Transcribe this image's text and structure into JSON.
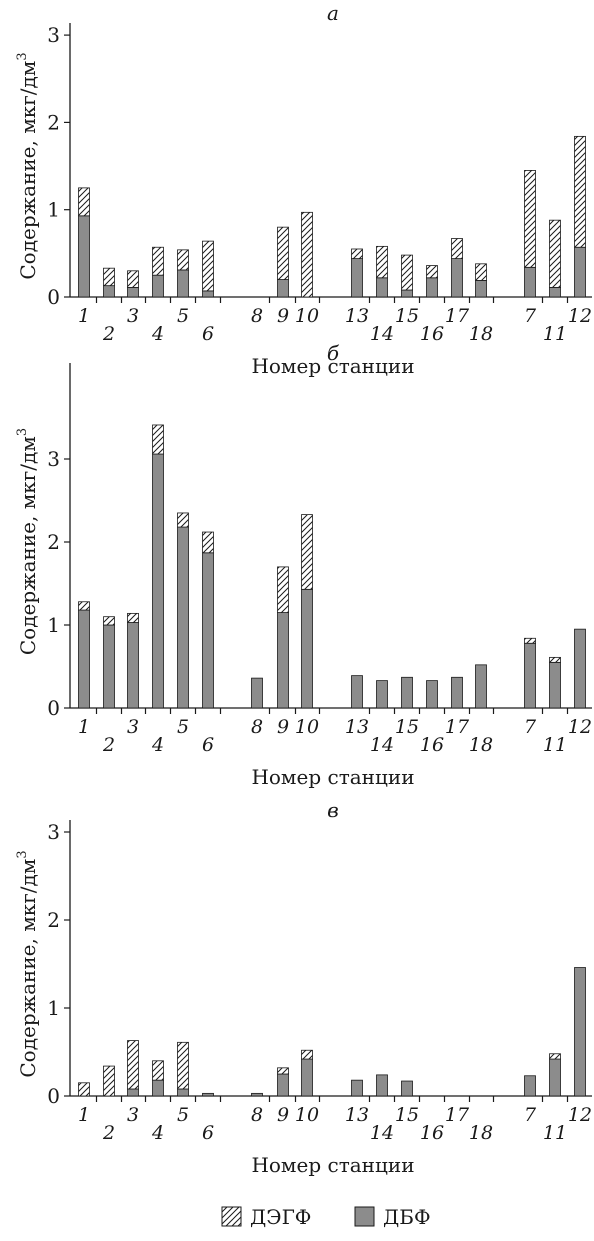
{
  "colors": {
    "dbf": "#8c8c8c",
    "stroke": "#1a1a1a",
    "hatch": "#1a1a1a"
  },
  "legend": {
    "items": [
      {
        "key": "degf",
        "label": "ДЭГФ",
        "pattern": "hatch"
      },
      {
        "key": "dbf",
        "label": "ДБФ",
        "pattern": "solid"
      }
    ]
  },
  "chart_data": [
    {
      "type": "bar",
      "stacked": true,
      "title": "а",
      "xlabel": "Номер станции",
      "ylabel": "Содержание, мкг/дм",
      "ylabel_sup": "3",
      "ylim": [
        0,
        3
      ],
      "yticks": [
        "0",
        "1",
        "2",
        "3"
      ],
      "categories": [
        "1",
        "2",
        "3",
        "4",
        "5",
        "6",
        "8",
        "9",
        "10",
        "13",
        "14",
        "15",
        "16",
        "17",
        "18",
        "7",
        "11",
        "12"
      ],
      "series": [
        {
          "name": "ДБФ",
          "values": [
            0.93,
            0.13,
            0.11,
            0.25,
            0.31,
            0.07,
            0,
            0.2,
            0,
            0.44,
            0.22,
            0.08,
            0.22,
            0.44,
            0.19,
            0.34,
            0.11,
            0.57
          ]
        },
        {
          "name": "ДЭГФ",
          "values": [
            0.32,
            0.2,
            0.19,
            0.32,
            0.23,
            0.57,
            0,
            0.6,
            0.97,
            0.11,
            0.36,
            0.4,
            0.14,
            0.23,
            0.19,
            1.11,
            0.77,
            1.27
          ]
        }
      ]
    },
    {
      "type": "bar",
      "stacked": true,
      "title": "б",
      "xlabel": "Номер станции",
      "ylabel": "Содержание, мкг/дм",
      "ylabel_sup": "3",
      "ylim": [
        0,
        3.5
      ],
      "yticks": [
        "0",
        "1",
        "2",
        "3"
      ],
      "categories": [
        "1",
        "2",
        "3",
        "4",
        "5",
        "6",
        "8",
        "9",
        "10",
        "13",
        "14",
        "15",
        "16",
        "17",
        "18",
        "7",
        "11",
        "12"
      ],
      "series": [
        {
          "name": "ДБФ",
          "values": [
            1.18,
            1.0,
            1.03,
            3.06,
            2.18,
            1.87,
            0.36,
            1.15,
            1.43,
            0.39,
            0.33,
            0.37,
            0.33,
            0.37,
            0.52,
            0.78,
            0.55,
            0.95
          ]
        },
        {
          "name": "ДЭГФ",
          "values": [
            0.1,
            0.1,
            0.11,
            0.35,
            0.17,
            0.25,
            0,
            0.55,
            0.9,
            0,
            0,
            0,
            0,
            0,
            0,
            0.06,
            0.06,
            0
          ]
        }
      ]
    },
    {
      "type": "bar",
      "stacked": true,
      "title": "в",
      "xlabel": "Номер станции",
      "ylabel": "Содержание, мкг/дм",
      "ylabel_sup": "3",
      "ylim": [
        0,
        3
      ],
      "yticks": [
        "0",
        "1",
        "2",
        "3"
      ],
      "categories": [
        "1",
        "2",
        "3",
        "4",
        "5",
        "6",
        "8",
        "9",
        "10",
        "13",
        "14",
        "15",
        "16",
        "17",
        "18",
        "7",
        "11",
        "12"
      ],
      "series": [
        {
          "name": "ДБФ",
          "values": [
            0,
            0,
            0.08,
            0.18,
            0.08,
            0.03,
            0.03,
            0.25,
            0.42,
            0.18,
            0.24,
            0.17,
            0,
            0,
            0,
            0.23,
            0.42,
            1.46
          ]
        },
        {
          "name": "ДЭГФ",
          "values": [
            0.15,
            0.34,
            0.55,
            0.22,
            0.53,
            0,
            0,
            0.07,
            0.1,
            0,
            0,
            0,
            0,
            0,
            0,
            0,
            0.06,
            0
          ]
        }
      ]
    }
  ]
}
